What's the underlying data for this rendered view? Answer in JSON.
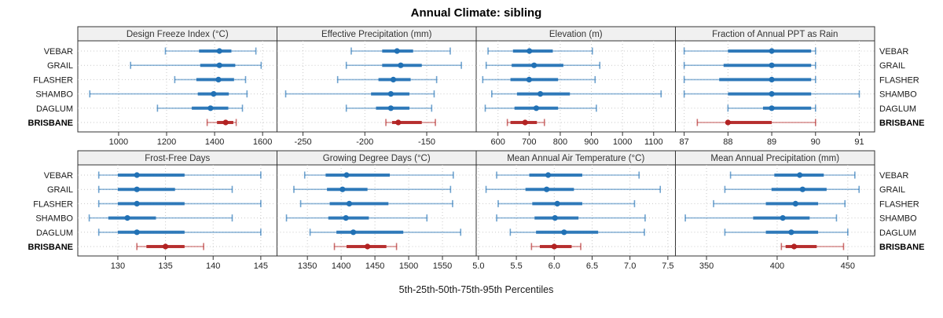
{
  "title": "Annual Climate: sibling",
  "xlabel": "5th-25th-50th-75th-95th Percentiles",
  "series_labels": [
    "VEBAR",
    "GRAIL",
    "FLASHER",
    "SHAMBO",
    "DAGLUM",
    "BRISBANE"
  ],
  "highlight_series": "BRISBANE",
  "colors": {
    "series_blue": "#2171b5",
    "highlight_red": "#b22222",
    "header_bg": "#f0f0f0",
    "border": "#333333",
    "grid": "#c9c9c9",
    "tick_text": "#222222",
    "header_text": "#333333",
    "label_text": "#1a1a1a"
  },
  "chart_data": {
    "type": "scatter",
    "subtype": "percentile-dotplot-trellis",
    "percentile_order": [
      "p5",
      "p25",
      "p50",
      "p75",
      "p95"
    ],
    "layout": {
      "rows": 2,
      "cols": 4,
      "grid": true,
      "row_categories_both_sides": true
    },
    "panels": [
      {
        "title": "Design Freeze Index (°C)",
        "xlim": [
          830,
          1660
        ],
        "ticks": [
          1000,
          1200,
          1400,
          1600
        ],
        "tick_labels": [
          "1000",
          "1200",
          "1400",
          "1600"
        ],
        "values": [
          [
            1195,
            1335,
            1420,
            1470,
            1572
          ],
          [
            1050,
            1340,
            1420,
            1486,
            1594
          ],
          [
            1234,
            1324,
            1416,
            1481,
            1529
          ],
          [
            880,
            1330,
            1396,
            1459,
            1535
          ],
          [
            1162,
            1305,
            1383,
            1457,
            1516
          ],
          [
            1369,
            1410,
            1446,
            1478,
            1490
          ]
        ]
      },
      {
        "title": "Effective Precipitation (mm)",
        "xlim": [
          -271,
          -110
        ],
        "ticks": [
          -250,
          -200,
          -150
        ],
        "tick_labels": [
          "-250",
          "-200",
          "-150"
        ],
        "values": [
          [
            -211,
            -186,
            -174,
            -161,
            -131
          ],
          [
            -215,
            -186,
            -171,
            -154,
            -122
          ],
          [
            -222,
            -189,
            -177,
            -163,
            -142
          ],
          [
            -264,
            -195,
            -179,
            -164,
            -144
          ],
          [
            -215,
            -191,
            -179,
            -164,
            -146
          ],
          [
            -183,
            -178,
            -173,
            -154,
            -143
          ]
        ]
      },
      {
        "title": "Elevation (m)",
        "xlim": [
          530,
          1170
        ],
        "ticks": [
          600,
          700,
          800,
          900,
          1000,
          1100
        ],
        "tick_labels": [
          "600",
          "700",
          "800",
          "900",
          "1000",
          "1100"
        ],
        "values": [
          [
            568,
            648,
            701,
            776,
            903
          ],
          [
            562,
            644,
            716,
            810,
            927
          ],
          [
            551,
            640,
            700,
            793,
            912
          ],
          [
            580,
            661,
            736,
            831,
            1124
          ],
          [
            559,
            653,
            723,
            793,
            916
          ],
          [
            630,
            640,
            687,
            725,
            749
          ]
        ]
      },
      {
        "title": "Fraction of Annual PPT as Rain",
        "xlim": [
          86.8,
          91.35
        ],
        "ticks": [
          87,
          88,
          89,
          90,
          91
        ],
        "tick_labels": [
          "87",
          "88",
          "89",
          "90",
          "91"
        ],
        "values": [
          [
            87,
            88,
            89,
            89.9,
            90
          ],
          [
            87,
            87.9,
            89,
            89.9,
            90
          ],
          [
            87,
            87.8,
            89,
            89.9,
            90
          ],
          [
            87,
            88,
            89,
            89.9,
            91
          ],
          [
            88,
            88.8,
            89,
            89.9,
            90
          ],
          [
            87.3,
            88,
            88,
            89,
            90
          ]
        ]
      },
      {
        "title": "Frost-Free Days",
        "xlim": [
          125.8,
          146.7
        ],
        "ticks": [
          130,
          135,
          140,
          145
        ],
        "tick_labels": [
          "130",
          "135",
          "140",
          "145"
        ],
        "values": [
          [
            128,
            130,
            132,
            137,
            145
          ],
          [
            128,
            130,
            132,
            136,
            142
          ],
          [
            128,
            130,
            132,
            137,
            145
          ],
          [
            127,
            129,
            131,
            134,
            142
          ],
          [
            128,
            130,
            132,
            137,
            145
          ],
          [
            132,
            133,
            135,
            137,
            139
          ]
        ]
      },
      {
        "title": "Growing Degree Days (°C)",
        "xlim": [
          1305,
          1600
        ],
        "ticks": [
          1350,
          1400,
          1450,
          1500,
          1550
        ],
        "tick_labels": [
          "1350",
          "1400",
          "1450",
          "1500",
          "1550"
        ],
        "values": [
          [
            1346,
            1377,
            1408,
            1472,
            1566
          ],
          [
            1330,
            1379,
            1402,
            1439,
            1562
          ],
          [
            1340,
            1383,
            1412,
            1470,
            1565
          ],
          [
            1319,
            1381,
            1407,
            1441,
            1527
          ],
          [
            1354,
            1393,
            1418,
            1492,
            1577
          ],
          [
            1390,
            1408,
            1439,
            1467,
            1482
          ]
        ]
      },
      {
        "title": "Mean Annual Air Temperature (°C)",
        "xlim": [
          4.97,
          7.6
        ],
        "ticks": [
          5.0,
          5.5,
          6.0,
          6.5,
          7.0,
          7.5
        ],
        "tick_labels": [
          "5.0",
          "5.5",
          "6.0",
          "6.5",
          "7.0",
          "7.5"
        ],
        "values": [
          [
            5.24,
            5.67,
            5.92,
            6.37,
            7.12
          ],
          [
            5.1,
            5.62,
            5.9,
            6.26,
            7.4
          ],
          [
            5.26,
            5.71,
            6.04,
            6.37,
            7.06
          ],
          [
            5.24,
            5.74,
            6.01,
            6.32,
            7.2
          ],
          [
            5.42,
            5.76,
            6.13,
            6.58,
            7.19
          ],
          [
            5.7,
            5.81,
            6.0,
            6.23,
            6.35
          ]
        ]
      },
      {
        "title": "Mean Annual Precipitation (mm)",
        "xlim": [
          328,
          469
        ],
        "ticks": [
          350,
          400,
          450
        ],
        "tick_labels": [
          "350",
          "400",
          "450"
        ],
        "values": [
          [
            367,
            398,
            416,
            433,
            455
          ],
          [
            363,
            396,
            418,
            435,
            458
          ],
          [
            355,
            392,
            413,
            429,
            448
          ],
          [
            335,
            383,
            404,
            423,
            442
          ],
          [
            363,
            392,
            410,
            429,
            450
          ],
          [
            403,
            406,
            412,
            428,
            447
          ]
        ]
      }
    ]
  }
}
